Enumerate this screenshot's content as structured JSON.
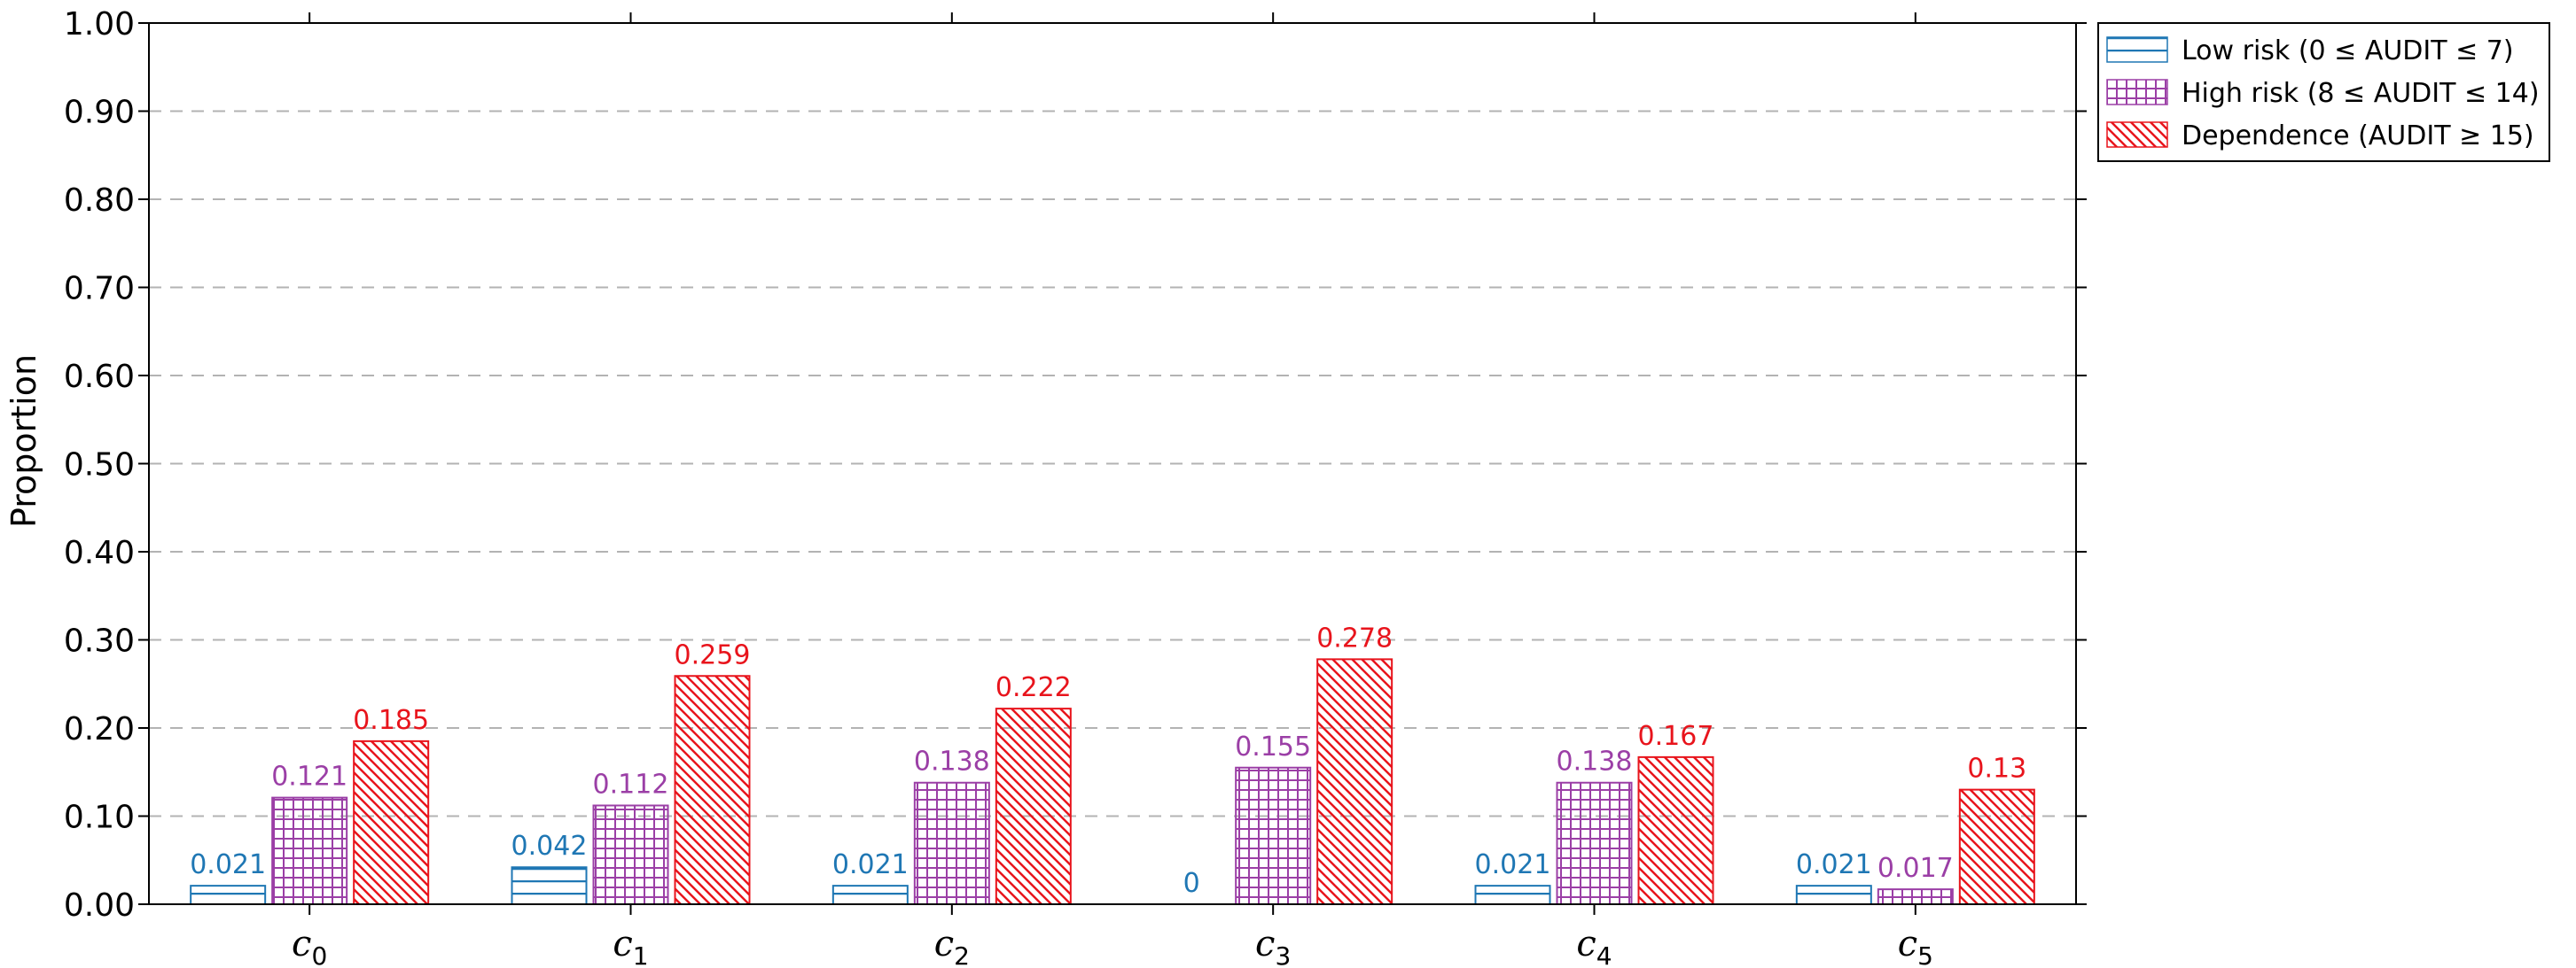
{
  "chart_data": {
    "type": "bar",
    "categories": [
      {
        "base": "c",
        "sub": "0"
      },
      {
        "base": "c",
        "sub": "1"
      },
      {
        "base": "c",
        "sub": "2"
      },
      {
        "base": "c",
        "sub": "3"
      },
      {
        "base": "c",
        "sub": "4"
      },
      {
        "base": "c",
        "sub": "5"
      }
    ],
    "series": [
      {
        "name": "Low risk (0 ≤ AUDIT ≤ 7)",
        "color": "#1f77b4",
        "pattern": "horizontal-lines",
        "values": [
          0.021,
          0.042,
          0.021,
          0,
          0.021,
          0.021
        ],
        "labels": [
          "0.021",
          "0.042",
          "0.021",
          "0",
          "0.021",
          "0.021"
        ]
      },
      {
        "name": "High risk (8 ≤ AUDIT ≤ 14)",
        "color": "#9b3fa6",
        "pattern": "grid",
        "values": [
          0.121,
          0.112,
          0.138,
          0.155,
          0.138,
          0.017
        ],
        "labels": [
          "0.121",
          "0.112",
          "0.138",
          "0.155",
          "0.138",
          "0.017"
        ]
      },
      {
        "name": "Dependence (AUDIT ≥ 15)",
        "color": "#e8141c",
        "pattern": "diagonal-lines",
        "values": [
          0.185,
          0.259,
          0.222,
          0.278,
          0.167,
          0.13
        ],
        "labels": [
          "0.185",
          "0.259",
          "0.222",
          "0.278",
          "0.167",
          "0.13"
        ]
      }
    ],
    "ylabel": "Proportion",
    "ylim": [
      0,
      1
    ],
    "yticks": [
      "0.00",
      "0.10",
      "0.20",
      "0.30",
      "0.40",
      "0.50",
      "0.60",
      "0.70",
      "0.80",
      "0.90",
      "1.00"
    ],
    "grid": "horizontal dashed",
    "legend_position": "outside-top-right"
  }
}
